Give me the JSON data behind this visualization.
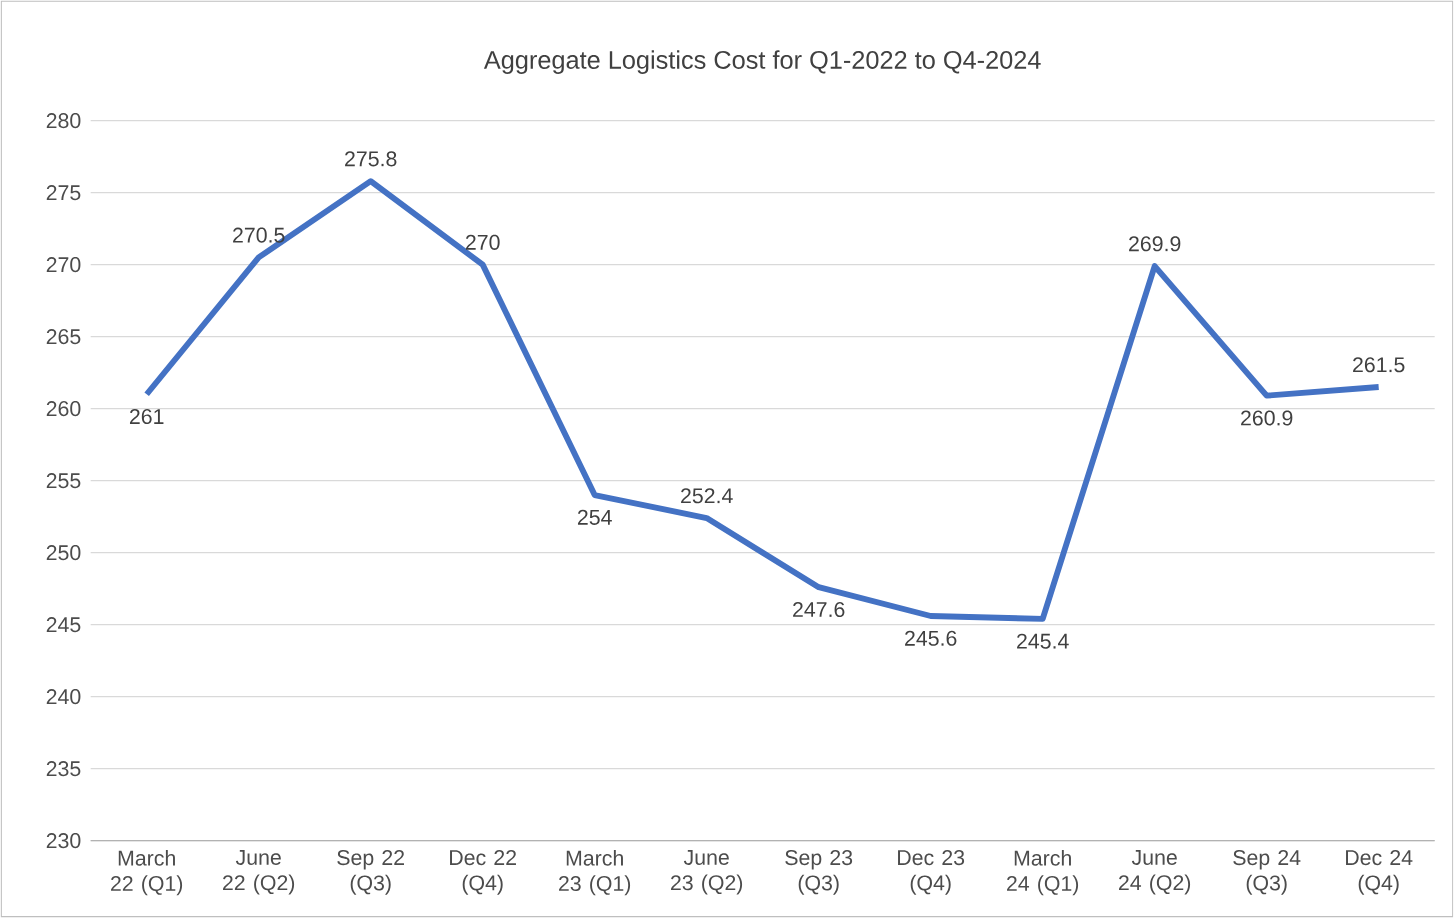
{
  "chart_data": {
    "type": "line",
    "title": "Aggregate Logistics Cost for Q1-2022 to Q4-2024",
    "categories": [
      "March 22 (Q1)",
      "June 22 (Q2)",
      "Sep 22 (Q3)",
      "Dec 22 (Q4)",
      "March 23 (Q1)",
      "June 23 (Q2)",
      "Sep 23 (Q3)",
      "Dec 23 (Q4)",
      "March 24 (Q1)",
      "June 24 (Q2)",
      "Sep 24 (Q3)",
      "Dec 24 (Q4)"
    ],
    "series": [
      {
        "color": "#4472c4",
        "values": [
          261,
          270.5,
          275.8,
          270,
          254,
          252.4,
          247.6,
          245.6,
          245.4,
          269.9,
          260.9,
          261.5
        ]
      }
    ],
    "ylim": [
      230,
      280
    ],
    "yticks": [
      230,
      235,
      240,
      245,
      250,
      255,
      260,
      265,
      270,
      275,
      280
    ],
    "grid": "y",
    "data_labels": true,
    "marker": "none",
    "line_style": "solid"
  }
}
